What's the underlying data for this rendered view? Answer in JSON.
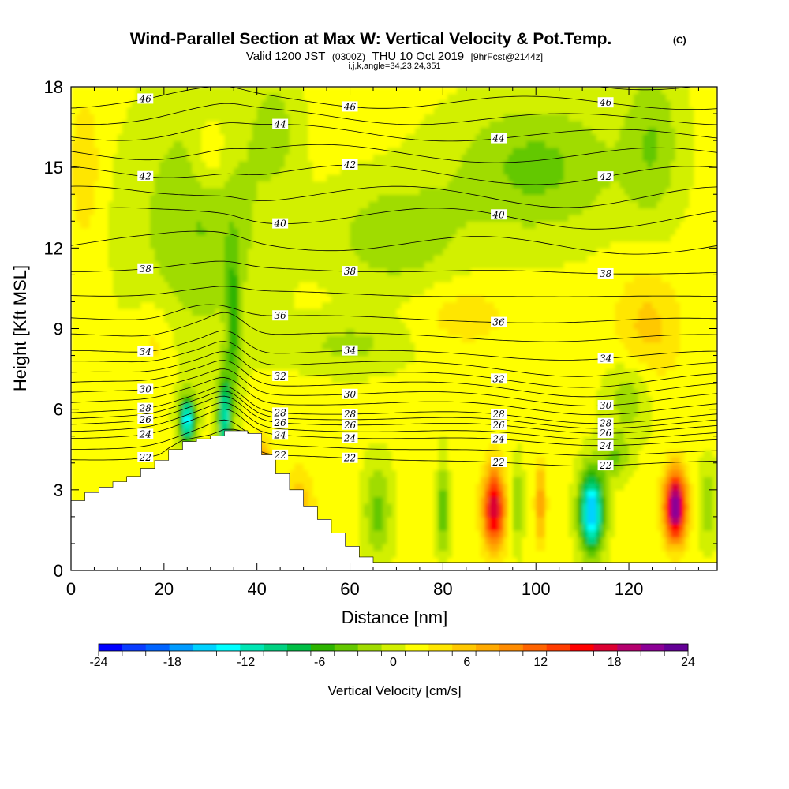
{
  "header": {
    "title_main": "Wind-Parallel Section at Max W: Vertical Velocity & Pot.Temp.",
    "title_copyright": "(C)",
    "valid_prefix": "Valid 1200 JST",
    "valid_utc": "(0300Z)",
    "valid_date": "THU 10 Oct 2019",
    "forecast_info": "[9hrFcst@2144z]",
    "section_params": "i,j,k,angle=34,23,24,351"
  },
  "chart_data": {
    "type": "heatmap",
    "xlabel": "Distance [nm]",
    "ylabel": "Height [Kft MSL]",
    "xlim": [
      0,
      139
    ],
    "ylim": [
      0,
      18
    ],
    "x_ticks": [
      0,
      20,
      40,
      60,
      80,
      100,
      120
    ],
    "y_ticks": [
      0,
      3,
      6,
      9,
      12,
      15,
      18
    ],
    "colorbar": {
      "title": "Vertical Velocity [cm/s]",
      "tick_labels": [
        "-24",
        "-18",
        "-12",
        "-6",
        "0",
        "6",
        "12",
        "18",
        "24"
      ],
      "range": [
        -24,
        24
      ],
      "colors": [
        "#0000ff",
        "#0a3cff",
        "#0064ff",
        "#009bff",
        "#00d2ff",
        "#00ffff",
        "#00e6b4",
        "#00d282",
        "#00be46",
        "#2db400",
        "#64c800",
        "#a0dc00",
        "#d2f000",
        "#ffff00",
        "#ffe600",
        "#ffc800",
        "#ffaa00",
        "#ff8c00",
        "#ff6400",
        "#ff3c00",
        "#ff0000",
        "#dc0032",
        "#b4006e",
        "#8c0096",
        "#640096"
      ]
    },
    "terrain_profile": {
      "x": [
        0,
        3,
        6,
        9,
        12,
        15,
        18,
        21,
        24,
        27,
        30,
        33,
        35,
        38,
        41,
        44,
        47,
        50,
        53,
        56,
        59,
        62,
        65,
        139
      ],
      "height": [
        2.6,
        2.9,
        3.1,
        3.3,
        3.5,
        3.8,
        4.1,
        4.5,
        4.8,
        4.9,
        5.0,
        5.2,
        5.2,
        5.1,
        4.3,
        3.6,
        3.0,
        2.4,
        1.9,
        1.4,
        0.9,
        0.5,
        0.3,
        0.3
      ]
    },
    "theta_isentropes": {
      "labels": [
        "22",
        "24",
        "26",
        "28",
        "30",
        "32",
        "34",
        "36",
        "38",
        "40",
        "42",
        "44",
        "46"
      ],
      "height_kft": [
        4.2,
        5.0,
        5.5,
        5.9,
        6.6,
        7.3,
        8.1,
        9.4,
        11.2,
        13.2,
        14.8,
        16.3,
        17.5
      ]
    },
    "updraft_maxima": [
      {
        "x": 91,
        "y": 2.3,
        "w": 18
      },
      {
        "x": 130,
        "y": 2.4,
        "w": 23
      }
    ],
    "downdraft_minima": [
      {
        "x": 112,
        "y": 2.2,
        "w": -17
      },
      {
        "x": 25,
        "y": 5.6,
        "w": -15
      },
      {
        "x": 33,
        "y": 5.7,
        "w": -13
      }
    ]
  }
}
